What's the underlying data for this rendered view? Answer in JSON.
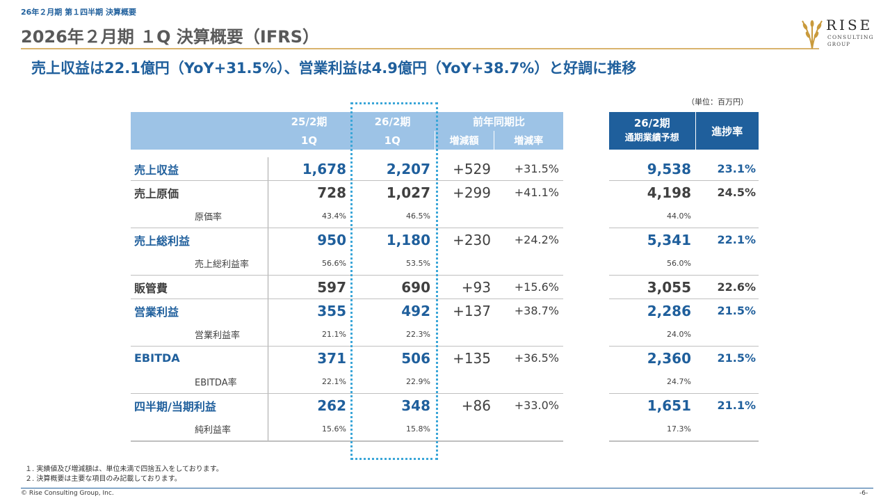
{
  "header": {
    "breadcrumb": "26年２月期 第１四半期 決算概要",
    "title": "2026年２月期 １Q 決算概要（IFRS）",
    "subtitle": "売上収益は22.1億円（YoY+31.5%）、営業利益は4.9億円（YoY+38.7%）と好調に推移"
  },
  "logo": {
    "line1": "RISE",
    "line2": "CONSULTING",
    "line3": "GROUP"
  },
  "unit": "（単位：百万円）",
  "table": {
    "col_prev": [
      "25/2期",
      "1Q"
    ],
    "col_curr": [
      "26/2期",
      "1Q"
    ],
    "col_yoy": "前年同期比",
    "col_diff": "増減額",
    "col_rate": "増減率",
    "col_forecast": [
      "26/2期",
      "通期業績予想"
    ],
    "col_progress": "進捗率",
    "rows": [
      {
        "label": "売上収益",
        "prev": "1,678",
        "curr": "2,207",
        "diff": "+529",
        "rate": "+31.5%",
        "forecast": "9,538",
        "progress": "23.1%"
      },
      {
        "label": "売上原価",
        "prev": "728",
        "curr": "1,027",
        "diff": "+299",
        "rate": "+41.1%",
        "forecast": "4,198",
        "progress": "24.5%",
        "sub": {
          "label": "原価率",
          "prev": "43.4%",
          "curr": "46.5%",
          "forecast": "44.0%"
        }
      },
      {
        "label": "売上総利益",
        "prev": "950",
        "curr": "1,180",
        "diff": "+230",
        "rate": "+24.2%",
        "forecast": "5,341",
        "progress": "22.1%",
        "sub": {
          "label": "売上総利益率",
          "prev": "56.6%",
          "curr": "53.5%",
          "forecast": "56.0%"
        }
      },
      {
        "label": "販管費",
        "prev": "597",
        "curr": "690",
        "diff": "+93",
        "rate": "+15.6%",
        "forecast": "3,055",
        "progress": "22.6%"
      },
      {
        "label": "営業利益",
        "prev": "355",
        "curr": "492",
        "diff": "+137",
        "rate": "+38.7%",
        "forecast": "2,286",
        "progress": "21.5%",
        "sub": {
          "label": "営業利益率",
          "prev": "21.1%",
          "curr": "22.3%",
          "forecast": "24.0%"
        }
      },
      {
        "label": "EBITDA",
        "prev": "371",
        "curr": "506",
        "diff": "+135",
        "rate": "+36.5%",
        "forecast": "2,360",
        "progress": "21.5%",
        "sub": {
          "label": "EBITDA率",
          "prev": "22.1%",
          "curr": "22.9%",
          "forecast": "24.7%"
        }
      },
      {
        "label": "四半期/当期利益",
        "prev": "262",
        "curr": "348",
        "diff": "+86",
        "rate": "+33.0%",
        "forecast": "1,651",
        "progress": "21.1%",
        "sub": {
          "label": "純利益率",
          "prev": "15.6%",
          "curr": "15.8%",
          "forecast": "17.3%"
        }
      }
    ]
  },
  "footnotes": [
    "１. 実績値及び増減額は、単位未満で四捨五入をしております。",
    "２. 決算概要は主要な項目のみ記載しております。"
  ],
  "footer": {
    "copyright": "© Rise Consulting Group, Inc.",
    "page": "-6-"
  },
  "colors": {
    "accent": "#1f5f9c",
    "header_light": "#9dc3e6",
    "gold": "#d9b36c",
    "highlight_dotted": "#3aa6d8"
  }
}
